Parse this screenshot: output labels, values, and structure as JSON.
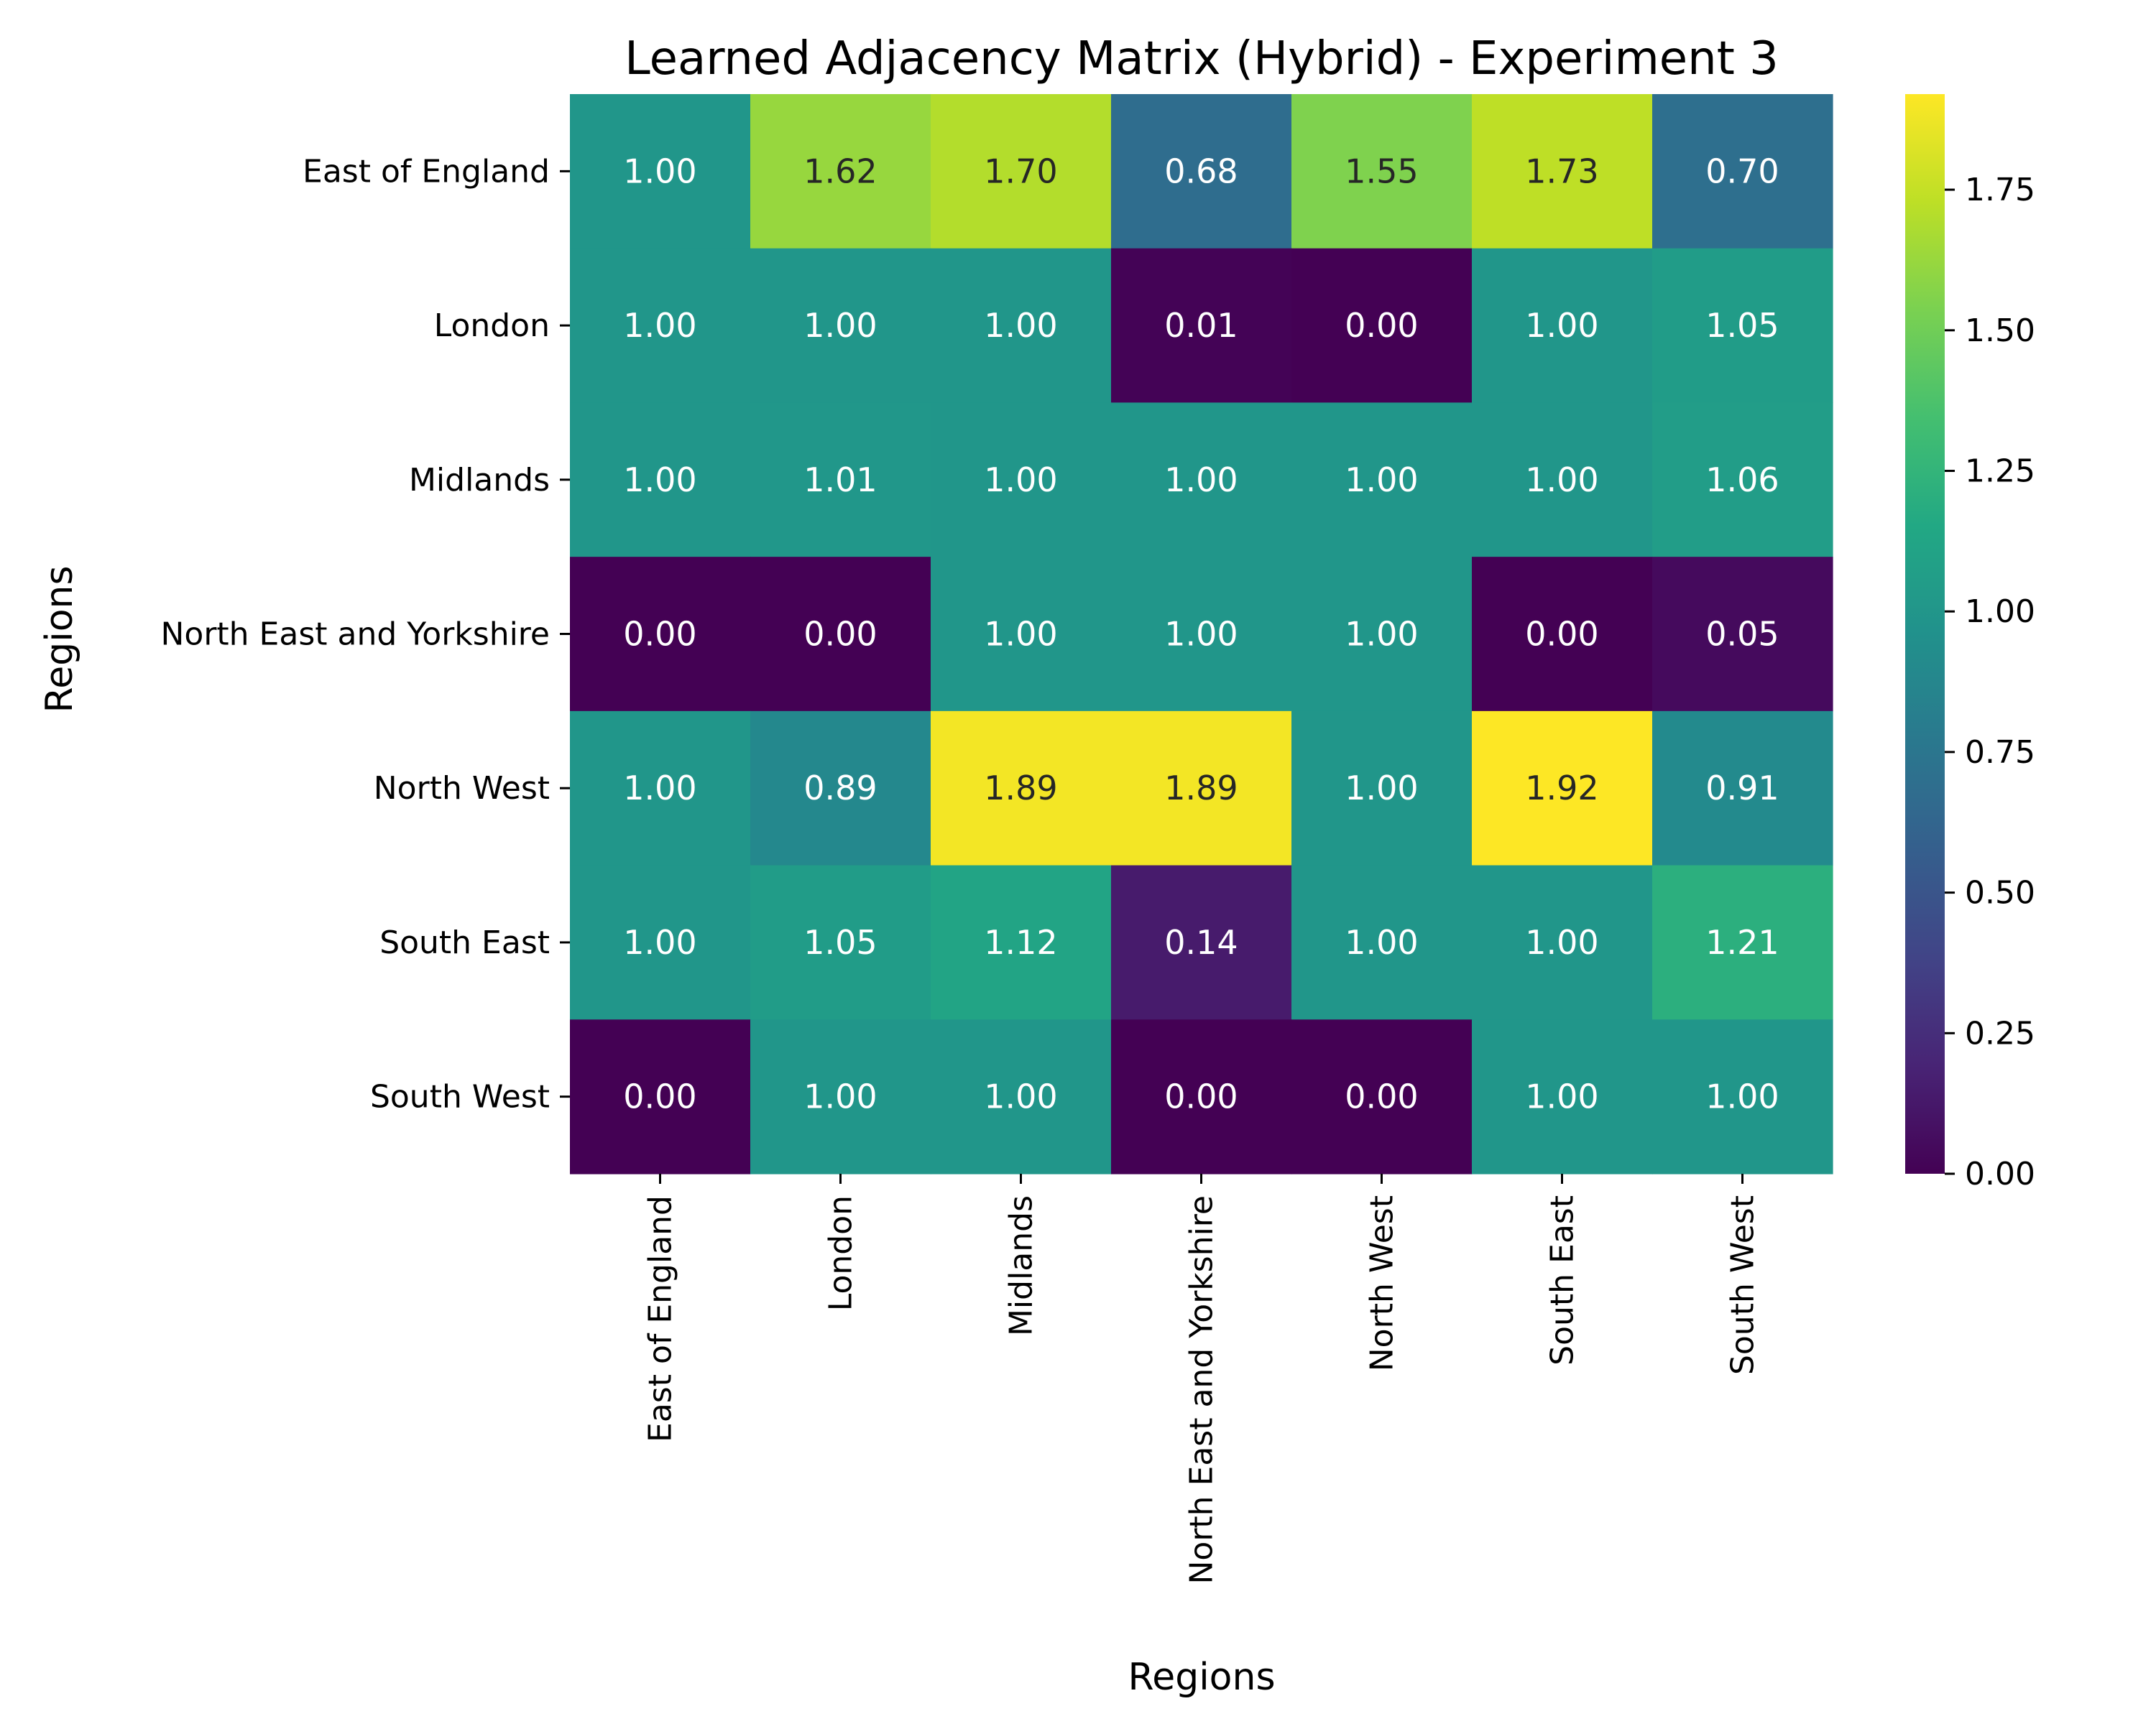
{
  "chart_data": {
    "type": "heatmap",
    "title": "Learned Adjacency Matrix (Hybrid) - Experiment 3",
    "xlabel": "Regions",
    "ylabel": "Regions",
    "x_categories": [
      "East of England",
      "London",
      "Midlands",
      "North East and Yorkshire",
      "North West",
      "South East",
      "South West"
    ],
    "y_categories": [
      "East of England",
      "London",
      "Midlands",
      "North East and Yorkshire",
      "North West",
      "South East",
      "South West"
    ],
    "values": [
      [
        1.0,
        1.62,
        1.7,
        0.68,
        1.55,
        1.73,
        0.7
      ],
      [
        1.0,
        1.0,
        1.0,
        0.01,
        0.0,
        1.0,
        1.05
      ],
      [
        1.0,
        1.01,
        1.0,
        1.0,
        1.0,
        1.0,
        1.06
      ],
      [
        0.0,
        0.0,
        1.0,
        1.0,
        1.0,
        0.0,
        0.05
      ],
      [
        1.0,
        0.89,
        1.89,
        1.89,
        1.0,
        1.92,
        0.91
      ],
      [
        1.0,
        1.05,
        1.12,
        0.14,
        1.0,
        1.0,
        1.21
      ],
      [
        0.0,
        1.0,
        1.0,
        0.0,
        0.0,
        1.0,
        1.0
      ]
    ],
    "value_format": "0.00",
    "colormap": "viridis",
    "vmin": 0.0,
    "vmax": 1.92,
    "colorbar_ticks": [
      "0.00",
      "0.25",
      "0.50",
      "0.75",
      "1.00",
      "1.25",
      "1.50",
      "1.75"
    ],
    "text_color_light": "#ffffff",
    "text_color_dark": "#262626"
  }
}
